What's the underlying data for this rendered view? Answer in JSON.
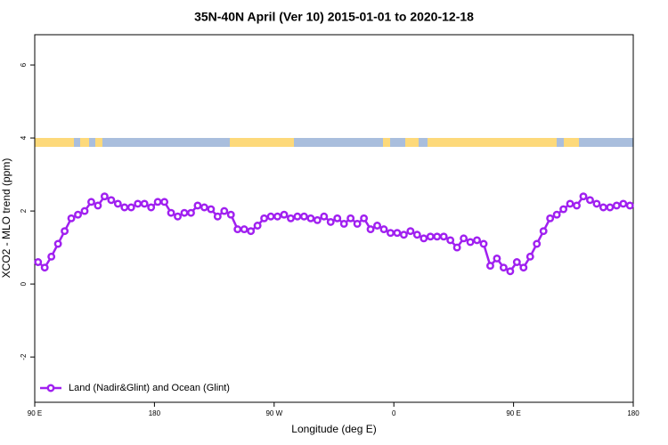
{
  "chart_data": {
    "type": "line",
    "title": "35N-40N April (Ver 10)   2015-01-01 to 2020-12-18",
    "x_label": "Longitude (deg E)",
    "y_label": "XCO2 - MLO trend (ppm)",
    "xlim": [
      90,
      540
    ],
    "xticks": [
      {
        "value": 90,
        "label": "90 E"
      },
      180,
      {
        "value": 270,
        "label": "90 W"
      },
      {
        "value": 360,
        "label": "0"
      },
      {
        "value": 450,
        "label": "90 E"
      },
      {
        "value": 540,
        "label": "180"
      }
    ],
    "ylim": [
      -3.24,
      6.83
    ],
    "yticks": [
      -2,
      0,
      2,
      4,
      6
    ],
    "legend": "bottom-left",
    "x": [
      92.5,
      97.5,
      102.5,
      107.5,
      112.5,
      117.5,
      122.5,
      127.5,
      132.5,
      137.5,
      142.5,
      147.5,
      152.5,
      157.5,
      162.5,
      167.5,
      172.5,
      177.5,
      182.5,
      187.5,
      192.5,
      197.5,
      202.5,
      207.5,
      212.5,
      217.5,
      222.5,
      227.5,
      232.5,
      237.5,
      242.5,
      247.5,
      252.5,
      257.5,
      262.5,
      267.5,
      272.5,
      277.5,
      282.5,
      287.5,
      292.5,
      297.5,
      302.5,
      307.5,
      312.5,
      317.5,
      322.5,
      327.5,
      332.5,
      337.5,
      342.5,
      347.5,
      352.5,
      357.5,
      362.5,
      367.5,
      372.5,
      377.5,
      382.5,
      387.5,
      392.5,
      397.5,
      402.5,
      407.5,
      412.5,
      417.5,
      422.5,
      427.5,
      432.5,
      437.5,
      442.5,
      447.5,
      452.5,
      457.5,
      462.5,
      467.5,
      472.5,
      477.5,
      482.5,
      487.5,
      492.5,
      497.5,
      502.5,
      507.5,
      512.5,
      517.5,
      522.5,
      527.5,
      532.5,
      537.5
    ],
    "series": [
      {
        "name": "Land (Nadir&Glint) and Ocean (Glint)",
        "color": "#a020f0",
        "values": [
          0.6,
          0.45,
          0.75,
          1.1,
          1.45,
          1.8,
          1.9,
          2.0,
          2.25,
          2.15,
          2.4,
          2.3,
          2.2,
          2.1,
          2.1,
          2.2,
          2.2,
          2.1,
          2.25,
          2.25,
          1.95,
          1.85,
          1.95,
          1.95,
          2.15,
          2.1,
          2.05,
          1.85,
          2.0,
          1.9,
          1.5,
          1.5,
          1.45,
          1.6,
          1.8,
          1.85,
          1.85,
          1.9,
          1.8,
          1.85,
          1.85,
          1.8,
          1.75,
          1.85,
          1.7,
          1.8,
          1.65,
          1.8,
          1.65,
          1.8,
          1.5,
          1.6,
          1.5,
          1.4,
          1.4,
          1.35,
          1.45,
          1.35,
          1.25,
          1.3,
          1.3,
          1.3,
          1.2,
          1.0,
          1.25,
          1.15,
          1.2,
          1.1,
          0.5,
          0.7,
          0.45,
          0.35,
          0.6,
          0.45,
          0.75,
          1.1,
          1.45,
          1.8,
          1.9,
          2.05,
          2.2,
          2.15,
          2.4,
          2.3,
          2.2,
          2.1,
          2.1,
          2.15,
          2.2,
          2.15
        ]
      }
    ]
  }
}
